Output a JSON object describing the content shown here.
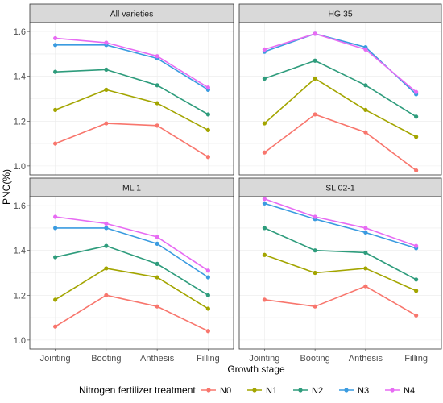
{
  "chart_data": {
    "type": "line",
    "xlabel": "Growth stage",
    "ylabel": "PNC(%)",
    "categories": [
      "Jointing",
      "Booting",
      "Anthesis",
      "Filling"
    ],
    "ylim": [
      0.96,
      1.64
    ],
    "yticks": [
      "1.0",
      "1.2",
      "1.4",
      "1.6"
    ],
    "grid": true,
    "legend": {
      "title": "Nitrogen fertilizer treatment",
      "position": "bottom",
      "entries": [
        "N0",
        "N1",
        "N2",
        "N3",
        "N4"
      ]
    },
    "colors": {
      "N0": "#f8766d",
      "N1": "#a3a500",
      "N2": "#2e9c7c",
      "N3": "#3a9be0",
      "N4": "#e76bf3"
    },
    "panels": [
      {
        "title": "All varieties",
        "series": [
          {
            "name": "N0",
            "values": [
              1.1,
              1.19,
              1.18,
              1.04
            ]
          },
          {
            "name": "N1",
            "values": [
              1.25,
              1.34,
              1.28,
              1.16
            ]
          },
          {
            "name": "N2",
            "values": [
              1.42,
              1.43,
              1.36,
              1.23
            ]
          },
          {
            "name": "N3",
            "values": [
              1.54,
              1.54,
              1.48,
              1.34
            ]
          },
          {
            "name": "N4",
            "values": [
              1.57,
              1.55,
              1.49,
              1.35
            ]
          }
        ]
      },
      {
        "title": "HG 35",
        "series": [
          {
            "name": "N0",
            "values": [
              1.06,
              1.23,
              1.15,
              0.98
            ]
          },
          {
            "name": "N1",
            "values": [
              1.19,
              1.39,
              1.25,
              1.13
            ]
          },
          {
            "name": "N2",
            "values": [
              1.39,
              1.47,
              1.36,
              1.22
            ]
          },
          {
            "name": "N3",
            "values": [
              1.51,
              1.59,
              1.53,
              1.32
            ]
          },
          {
            "name": "N4",
            "values": [
              1.52,
              1.59,
              1.52,
              1.33
            ]
          }
        ]
      },
      {
        "title": "ML 1",
        "series": [
          {
            "name": "N0",
            "values": [
              1.06,
              1.2,
              1.15,
              1.04
            ]
          },
          {
            "name": "N1",
            "values": [
              1.18,
              1.32,
              1.28,
              1.14
            ]
          },
          {
            "name": "N2",
            "values": [
              1.37,
              1.42,
              1.34,
              1.2
            ]
          },
          {
            "name": "N3",
            "values": [
              1.5,
              1.5,
              1.43,
              1.28
            ]
          },
          {
            "name": "N4",
            "values": [
              1.55,
              1.52,
              1.46,
              1.31
            ]
          }
        ]
      },
      {
        "title": "SL 02-1",
        "series": [
          {
            "name": "N0",
            "values": [
              1.18,
              1.15,
              1.24,
              1.11
            ]
          },
          {
            "name": "N1",
            "values": [
              1.38,
              1.3,
              1.32,
              1.22
            ]
          },
          {
            "name": "N2",
            "values": [
              1.5,
              1.4,
              1.39,
              1.27
            ]
          },
          {
            "name": "N3",
            "values": [
              1.61,
              1.54,
              1.48,
              1.41
            ]
          },
          {
            "name": "N4",
            "values": [
              1.63,
              1.55,
              1.5,
              1.42
            ]
          }
        ]
      }
    ]
  }
}
